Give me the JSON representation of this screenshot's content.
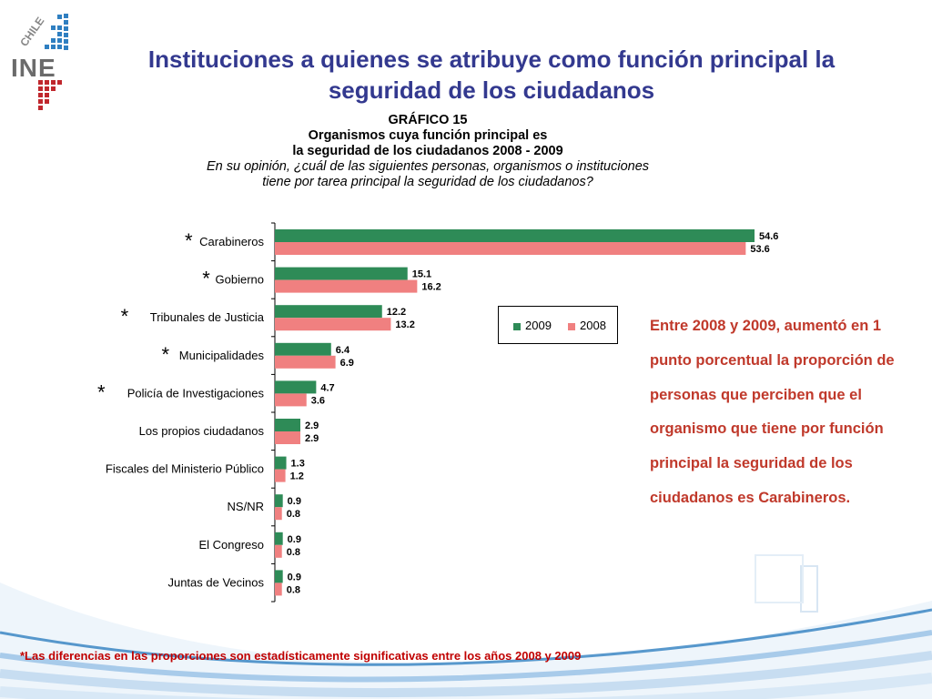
{
  "logo": {
    "text": "CHILE",
    "mark": "INE",
    "icon": "ine-chile-logo"
  },
  "title": {
    "line1": "Instituciones a quienes se atribuye como función principal la",
    "line2": "seguridad de los ciudadanos"
  },
  "chart_heading": {
    "label": "GRÁFICO 15",
    "line1": "Organismos cuya función principal es",
    "line2": "la seguridad de los ciudadanos 2008 - 2009",
    "question1": "En su opinión, ¿cuál de las siguientes personas, organismos o instituciones",
    "question2": "tiene por tarea principal la seguridad de los ciudadanos?"
  },
  "chart_data": {
    "type": "bar",
    "orientation": "horizontal",
    "categories": [
      "Carabineros",
      "Gobierno",
      "Tribunales de Justicia",
      "Municipalidades",
      "Policía de Investigaciones",
      "Los propios ciudadanos",
      "Fiscales del Ministerio Público",
      "NS/NR",
      "El Congreso",
      "Juntas de Vecinos"
    ],
    "significant": [
      true,
      true,
      true,
      true,
      true,
      false,
      false,
      false,
      false,
      false
    ],
    "significance_marker": "*",
    "series": [
      {
        "name": "2009",
        "color": "#2e8b57",
        "values": [
          54.6,
          15.1,
          12.2,
          6.4,
          4.7,
          2.9,
          1.3,
          0.9,
          0.9,
          0.9
        ]
      },
      {
        "name": "2008",
        "color": "#f08080",
        "values": [
          53.6,
          16.2,
          13.2,
          6.9,
          3.6,
          2.9,
          1.2,
          0.8,
          0.8,
          0.8
        ]
      }
    ],
    "value_labels": {
      "2009": [
        "54.6",
        "15.1",
        "12.2",
        "6.4",
        "4.7",
        "2.9",
        "1.3",
        "0.9",
        "0.9",
        "0.9"
      ],
      "2008": [
        "53.6",
        "16.2",
        "13.2",
        "6.9",
        "3.6",
        "2.9",
        "1.2",
        "0.8",
        "0.8",
        "0.8"
      ]
    },
    "xlim": [
      0,
      60
    ],
    "grid": false,
    "legend_position": "middle-right"
  },
  "note": "Entre 2008 y 2009, aumentó en 1 punto porcentual la proporción de personas que perciben que el organismo que tiene por función principal la seguridad de los ciudadanos es Carabineros.",
  "footer_note": "*Las diferencias en las proporciones son estadísticamente significativas entre los años 2008 y 2009"
}
